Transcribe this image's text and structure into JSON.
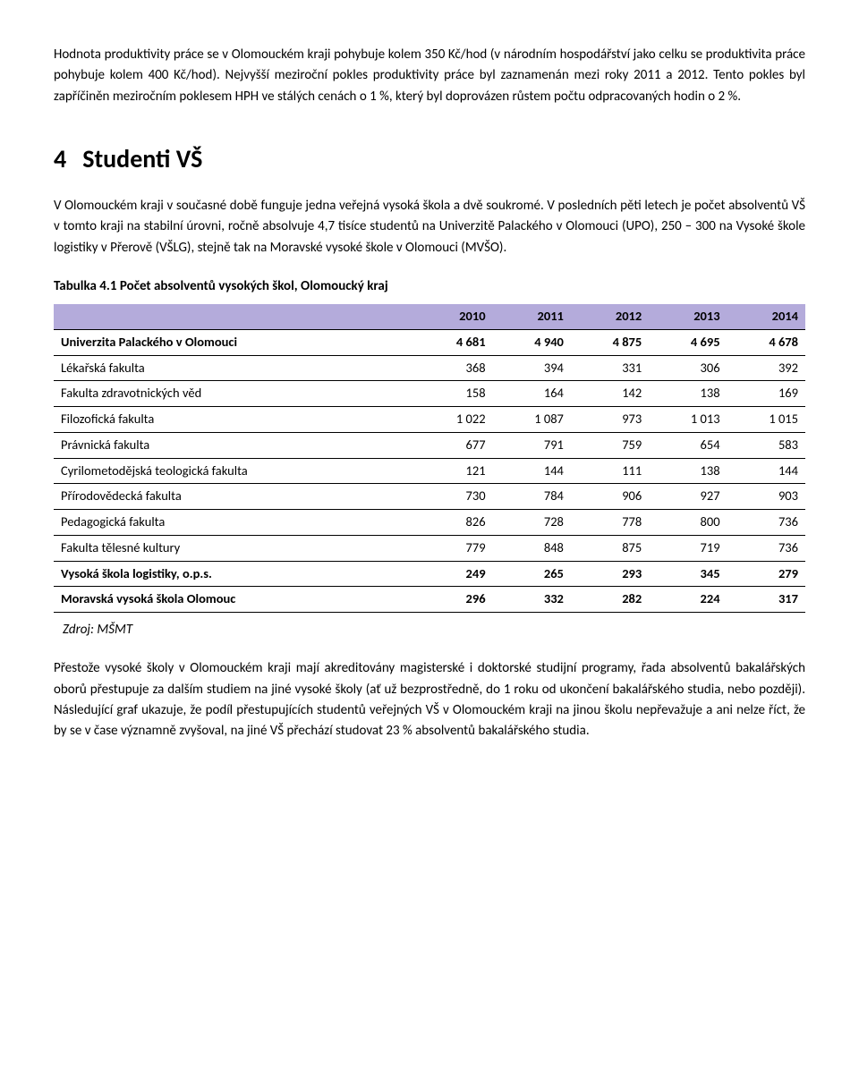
{
  "colors": {
    "table_header_bg": "#b4abdb",
    "text": "#000000",
    "background": "#ffffff",
    "border": "#000000"
  },
  "para1": "Hodnota produktivity práce se v Olomouckém kraji pohybuje kolem 350 Kč/hod (v národním hospodářství jako celku se produktivita práce pohybuje kolem 400 Kč/hod). Nejvyšší meziroční pokles produktivity práce byl zaznamenán mezi roky 2011 a 2012. Tento pokles byl zapříčiněn meziročním poklesem HPH ve stálých cenách o 1 %, který byl doprovázen růstem počtu odpracovaných hodin o 2 %.",
  "section": {
    "number": "4",
    "title": "Studenti VŠ"
  },
  "para2": "V Olomouckém kraji v současné době funguje jedna veřejná vysoká škola a dvě soukromé. V posledních pěti letech je počet absolventů VŠ v tomto kraji na stabilní úrovni, ročně absolvuje 4,7 tisíce studentů na Univerzitě Palackého v Olomouci (UPO), 250 – 300 na Vysoké škole logistiky v Přerově (VŠLG), stejně tak na Moravské vysoké škole v Olomouci (MVŠO).",
  "table": {
    "caption": "Tabulka 4.1 Počet absolventů vysokých škol, Olomoucký kraj",
    "columns": [
      "",
      "2010",
      "2011",
      "2012",
      "2013",
      "2014"
    ],
    "rows": [
      {
        "label": "Univerzita Palackého v Olomouci",
        "vals": [
          "4 681",
          "4 940",
          "4 875",
          "4 695",
          "4 678"
        ],
        "bold": true,
        "sep": true
      },
      {
        "label": "Lékařská fakulta",
        "vals": [
          "368",
          "394",
          "331",
          "306",
          "392"
        ],
        "bold": false,
        "sep": true
      },
      {
        "label": "Fakulta zdravotnických věd",
        "vals": [
          "158",
          "164",
          "142",
          "138",
          "169"
        ],
        "bold": false,
        "sep": true
      },
      {
        "label": "Filozofická fakulta",
        "vals": [
          "1 022",
          "1 087",
          "973",
          "1 013",
          "1 015"
        ],
        "bold": false,
        "sep": true
      },
      {
        "label": "Právnická fakulta",
        "vals": [
          "677",
          "791",
          "759",
          "654",
          "583"
        ],
        "bold": false,
        "sep": true
      },
      {
        "label": "Cyrilometodějská teologická fakulta",
        "vals": [
          "121",
          "144",
          "111",
          "138",
          "144"
        ],
        "bold": false,
        "sep": true
      },
      {
        "label": "Přírodovědecká fakulta",
        "vals": [
          "730",
          "784",
          "906",
          "927",
          "903"
        ],
        "bold": false,
        "sep": true
      },
      {
        "label": "Pedagogická fakulta",
        "vals": [
          "826",
          "728",
          "778",
          "800",
          "736"
        ],
        "bold": false,
        "sep": true
      },
      {
        "label": "Fakulta tělesné kultury",
        "vals": [
          "779",
          "848",
          "875",
          "719",
          "736"
        ],
        "bold": false,
        "sep": true
      },
      {
        "label": "Vysoká škola logistiky, o.p.s.",
        "vals": [
          "249",
          "265",
          "293",
          "345",
          "279"
        ],
        "bold": true,
        "sep": true
      },
      {
        "label": "Moravská vysoká škola Olomouc",
        "vals": [
          "296",
          "332",
          "282",
          "224",
          "317"
        ],
        "bold": true,
        "sep": false
      }
    ],
    "source": "Zdroj: MŠMT"
  },
  "para3": "Přestože vysoké školy v Olomouckém kraji mají akreditovány magisterské i doktorské studijní programy, řada absolventů bakalářských oborů přestupuje za dalším studiem na jiné vysoké školy (ať už bezprostředně, do 1 roku od ukončení bakalářského studia, nebo později). Následující graf ukazuje, že podíl přestupujících studentů veřejných VŠ v Olomouckém kraji na jinou školu nepřevažuje a ani nelze říct, že by se v čase významně zvyšoval, na jiné VŠ přechází studovat 23 % absolventů bakalářského studia."
}
